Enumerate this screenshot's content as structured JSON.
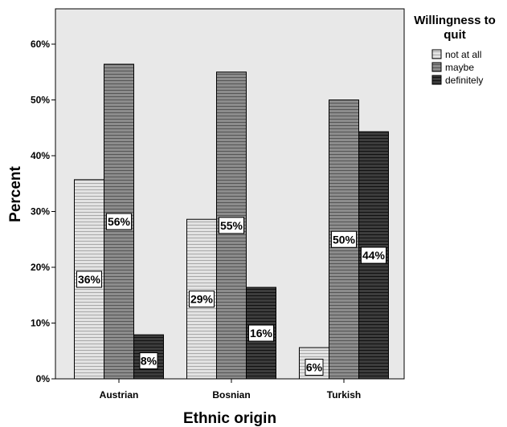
{
  "chart_data": {
    "type": "bar",
    "title": "",
    "xlabel": "Ethnic origin",
    "ylabel": "Percent",
    "categories": [
      "Austrian",
      "Bosnian",
      "Turkish"
    ],
    "ylim": [
      0,
      65
    ],
    "yticks": [
      0,
      10,
      20,
      30,
      40,
      50,
      60
    ],
    "ytick_labels": [
      "0%",
      "10%",
      "20%",
      "30%",
      "40%",
      "50%",
      "60%"
    ],
    "grid": false,
    "legend": {
      "title": "Willingness to quit",
      "title_lines": [
        "Willingness to",
        "quit"
      ],
      "placement": "right"
    },
    "series": [
      {
        "name": "not at all",
        "values": [
          35.7,
          28.6,
          5.6
        ],
        "labels": [
          "36%",
          "29%",
          "6%"
        ],
        "color": "#e3e3e3"
      },
      {
        "name": "maybe",
        "values": [
          56.4,
          55.0,
          50.0
        ],
        "labels": [
          "56%",
          "55%",
          "50%"
        ],
        "color": "#8c8c8c"
      },
      {
        "name": "definitely",
        "values": [
          7.9,
          16.4,
          44.3
        ],
        "labels": [
          "8%",
          "16%",
          "44%"
        ],
        "color": "#3c3c3c"
      }
    ],
    "colors": {
      "plot_background": "#e8e8e8",
      "bar_stroke": "#000000"
    }
  }
}
